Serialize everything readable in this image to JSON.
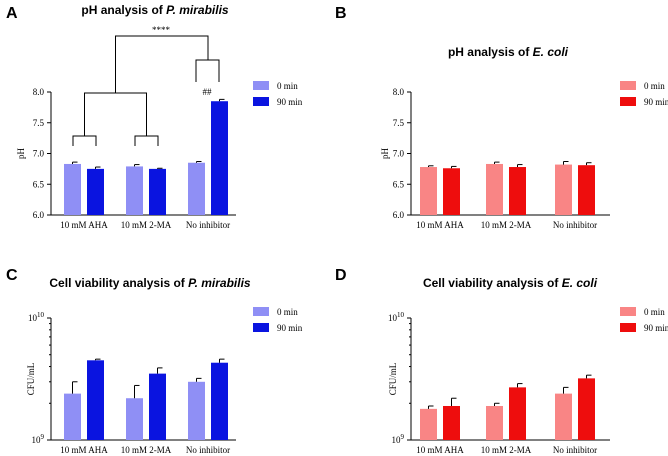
{
  "chart_data": [
    {
      "panel": "A",
      "type": "bar",
      "title_prefix": "pH analysis of ",
      "title_italic": "P. mirabilis",
      "ylabel": "pH",
      "scale": "linear",
      "ylim": [
        6.0,
        8.0
      ],
      "yticks": [
        "6.0",
        "6.5",
        "7.0",
        "7.5",
        "8.0"
      ],
      "categories": [
        "10 mM AHA",
        "10 mM 2-MA",
        "No inhibitor"
      ],
      "series": [
        {
          "name": "0 min",
          "color": "#8f8ff5",
          "values": [
            6.83,
            6.79,
            6.85
          ],
          "errors": [
            0.03,
            0.03,
            0.02
          ]
        },
        {
          "name": "90 min",
          "color": "#0a14e0",
          "values": [
            6.75,
            6.75,
            7.85
          ],
          "errors": [
            0.03,
            0.01,
            0.03
          ]
        }
      ],
      "annotations": {
        "significance": "****",
        "hash": "##"
      }
    },
    {
      "panel": "B",
      "type": "bar",
      "title_prefix": "pH analysis of ",
      "title_italic": "E. coli",
      "ylabel": "pH",
      "scale": "linear",
      "ylim": [
        6.0,
        8.0
      ],
      "yticks": [
        "6.0",
        "6.5",
        "7.0",
        "7.5",
        "8.0"
      ],
      "categories": [
        "10 mM AHA",
        "10 mM 2-MA",
        "No inhibitor"
      ],
      "series": [
        {
          "name": "0 min",
          "color": "#f98585",
          "values": [
            6.78,
            6.83,
            6.82
          ],
          "errors": [
            0.02,
            0.03,
            0.05
          ]
        },
        {
          "name": "90 min",
          "color": "#ee0d0d",
          "values": [
            6.76,
            6.78,
            6.81
          ],
          "errors": [
            0.03,
            0.04,
            0.04
          ]
        }
      ]
    },
    {
      "panel": "C",
      "type": "bar",
      "title_prefix": "Cell viability analysis of ",
      "title_italic": "P. mirabilis",
      "ylabel": "CFU/mL",
      "scale": "log",
      "ylim": [
        1000000000,
        10000000000
      ],
      "yticks": [
        {
          "base": "10",
          "exp": "9"
        },
        {
          "base": "10",
          "exp": "10"
        }
      ],
      "categories": [
        "10 mM AHA",
        "10 mM 2-MA",
        "No inhibitor"
      ],
      "series": [
        {
          "name": "0 min",
          "color": "#8f8ff5",
          "values": [
            2400000000,
            2200000000,
            3000000000
          ],
          "errors": [
            600000000,
            600000000,
            200000000
          ]
        },
        {
          "name": "90 min",
          "color": "#0a14e0",
          "values": [
            4500000000,
            3500000000,
            4300000000
          ],
          "errors": [
            100000000,
            400000000,
            300000000
          ]
        }
      ]
    },
    {
      "panel": "D",
      "type": "bar",
      "title_prefix": "Cell viability analysis of ",
      "title_italic": "E. coli",
      "ylabel": "CFU/mL",
      "scale": "log",
      "ylim": [
        1000000000,
        10000000000
      ],
      "yticks": [
        {
          "base": "10",
          "exp": "9"
        },
        {
          "base": "10",
          "exp": "10"
        }
      ],
      "categories": [
        "10 mM AHA",
        "10 mM 2-MA",
        "No inhibitor"
      ],
      "series": [
        {
          "name": "0 min",
          "color": "#f98585",
          "values": [
            1800000000,
            1900000000,
            2400000000
          ],
          "errors": [
            100000000,
            100000000,
            300000000
          ]
        },
        {
          "name": "90 min",
          "color": "#ee0d0d",
          "values": [
            1900000000,
            2700000000,
            3200000000
          ],
          "errors": [
            300000000,
            200000000,
            200000000
          ]
        }
      ]
    }
  ]
}
